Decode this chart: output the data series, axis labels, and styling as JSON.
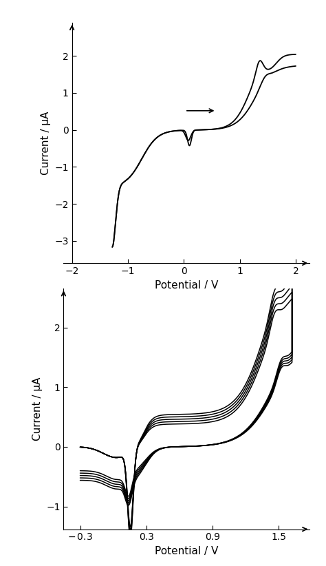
{
  "plot1": {
    "xlabel": "Potential / V",
    "ylabel": "Current / µA",
    "xlim": [
      -2.15,
      2.25
    ],
    "ylim": [
      -3.6,
      2.9
    ],
    "xticks": [
      -2,
      -1,
      0,
      1,
      2
    ],
    "yticks": [
      -3,
      -2,
      -1,
      0,
      1,
      2
    ],
    "line_color": "black",
    "line_width": 1.3
  },
  "plot2": {
    "xlabel": "Potential / V",
    "ylabel": "Current / µA",
    "xlim": [
      -0.45,
      1.78
    ],
    "ylim": [
      -1.38,
      2.65
    ],
    "xticks": [
      -0.3,
      0.3,
      0.9,
      1.5
    ],
    "yticks": [
      -1,
      0,
      1,
      2
    ],
    "line_color": "black",
    "line_width": 1.1,
    "n_cycles": 5
  },
  "background_color": "white",
  "font_size": 11
}
